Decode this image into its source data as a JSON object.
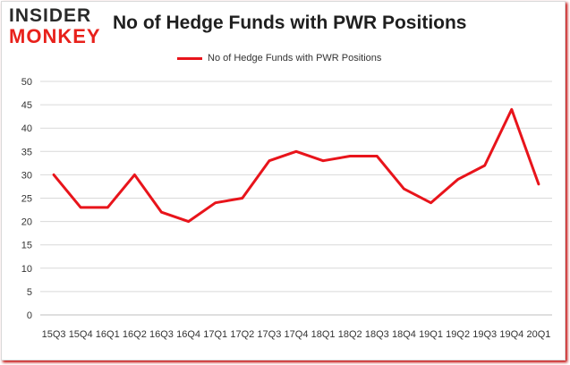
{
  "logo": {
    "line1": "INSIDER",
    "line2": "MONKEY"
  },
  "chart_data": {
    "type": "line",
    "title": "No of Hedge Funds with PWR Positions",
    "xlabel": "",
    "ylabel": "",
    "categories": [
      "15Q3",
      "15Q4",
      "16Q1",
      "16Q2",
      "16Q3",
      "16Q4",
      "17Q1",
      "17Q2",
      "17Q3",
      "17Q4",
      "18Q1",
      "18Q2",
      "18Q3",
      "18Q4",
      "19Q1",
      "19Q2",
      "19Q3",
      "19Q4",
      "20Q1"
    ],
    "series": [
      {
        "name": "No of Hedge Funds with PWR Positions",
        "color": "#e8141b",
        "values": [
          30,
          23,
          23,
          30,
          22,
          20,
          24,
          25,
          33,
          35,
          33,
          34,
          34,
          27,
          24,
          29,
          32,
          44,
          28
        ]
      }
    ],
    "ylim": [
      0,
      50
    ],
    "yticks": [
      0,
      5,
      10,
      15,
      20,
      25,
      30,
      35,
      40,
      45,
      50
    ],
    "grid": true,
    "legend_position": "top-center"
  }
}
